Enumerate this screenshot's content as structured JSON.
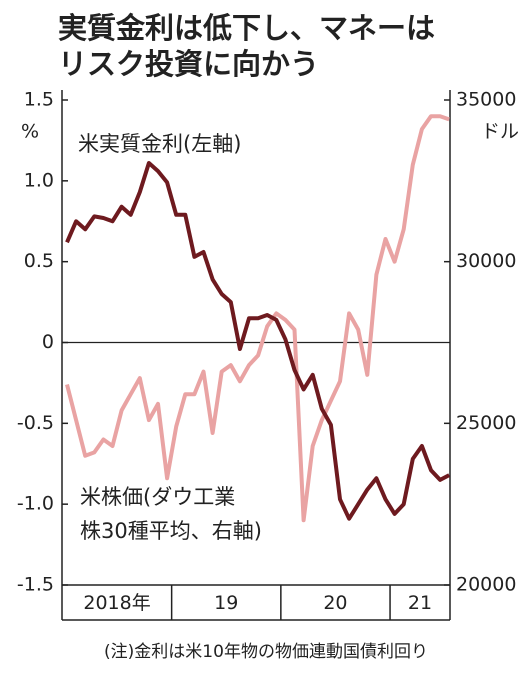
{
  "chart_data": {
    "type": "line",
    "title": [
      "実質金利は低下し、マネーは",
      "リスク投資に向かう"
    ],
    "ylabel": "%",
    "y2label": "ドル",
    "categories": [
      "2018年",
      null,
      null,
      null,
      null,
      null,
      null,
      null,
      null,
      null,
      null,
      null,
      "19",
      null,
      null,
      null,
      null,
      null,
      null,
      null,
      null,
      null,
      null,
      null,
      "20",
      null,
      null,
      null,
      null,
      null,
      null,
      null,
      null,
      null,
      null,
      null,
      "21",
      null,
      null,
      null,
      null,
      null,
      null
    ],
    "series": [
      {
        "name": [
          "米実質金利(左軸)"
        ],
        "color": "#6e1a1f",
        "axis": "y",
        "values": [
          0.62,
          0.75,
          0.7,
          0.78,
          0.77,
          0.75,
          0.84,
          0.79,
          0.93,
          1.11,
          1.06,
          0.99,
          0.79,
          0.79,
          0.53,
          0.56,
          0.39,
          0.3,
          0.25,
          -0.04,
          0.15,
          0.15,
          0.17,
          0.14,
          0.02,
          -0.17,
          -0.29,
          -0.2,
          -0.41,
          -0.51,
          -0.97,
          -1.09,
          -1.0,
          -0.91,
          -0.84,
          -0.97,
          -1.06,
          -1.0,
          -0.72,
          -0.64,
          -0.79,
          -0.85,
          -0.82
        ]
      },
      {
        "name": [
          "米株価(ダウ工業",
          "株30種平均、右軸)"
        ],
        "color": "#e9a3a3",
        "axis": "y2",
        "values": [
          26200,
          25100,
          24000,
          24100,
          24500,
          24300,
          25400,
          25900,
          26400,
          25100,
          25600,
          23300,
          24900,
          25900,
          25900,
          26600,
          24700,
          26600,
          26800,
          26300,
          26800,
          27100,
          28000,
          28400,
          28200,
          27900,
          22000,
          24300,
          25100,
          25700,
          26300,
          28400,
          27900,
          26500,
          29600,
          30700,
          30000,
          31000,
          33000,
          34100,
          34500,
          34500,
          34400
        ]
      }
    ],
    "ylim": [
      -1.5,
      1.5
    ],
    "yticks": [
      1.5,
      {
        "value": 1,
        "label": "1.0"
      },
      0.5,
      0,
      -0.5,
      {
        "value": -1,
        "label": "-1.0"
      },
      -1.5
    ],
    "y2lim": [
      20000,
      35000
    ],
    "y2ticks": [
      20000,
      25000,
      30000,
      35000
    ],
    "note": "(注)金利は米10年物の物価連動国債利回り"
  }
}
